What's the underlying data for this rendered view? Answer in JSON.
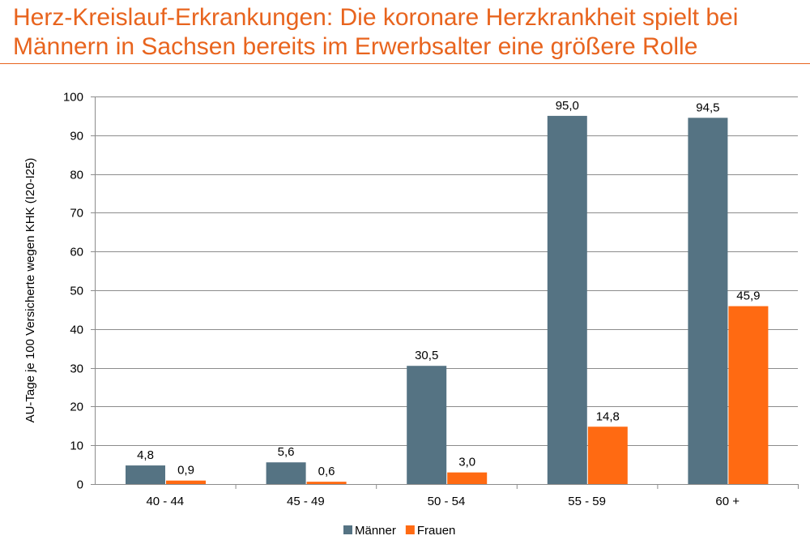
{
  "title": "Herz-Kreislauf-Erkrankungen: Die koronare Herzkrankheit spielt bei Männern in Sachsen bereits im Erwerbsalter eine größere Rolle",
  "chart_data": {
    "type": "bar",
    "title": "",
    "xlabel": "",
    "ylabel": "AU-Tage je 100 Versicherte wegen KHK (I20-I25)",
    "ylim": [
      0,
      100
    ],
    "yticks": [
      0,
      10,
      20,
      30,
      40,
      50,
      60,
      70,
      80,
      90,
      100
    ],
    "grid": true,
    "legend": "bottom",
    "categories": [
      "40 - 44",
      "45 - 49",
      "50 - 54",
      "55 - 59",
      "60 +"
    ],
    "series": [
      {
        "name": "Männer",
        "color": "#557383",
        "values": [
          4.8,
          5.6,
          30.5,
          95.0,
          94.5
        ],
        "labels": [
          "4,8",
          "5,6",
          "30,5",
          "95,0",
          "94,5"
        ]
      },
      {
        "name": "Frauen",
        "color": "#ff6a12",
        "values": [
          0.9,
          0.6,
          3.0,
          14.8,
          45.9
        ],
        "labels": [
          "0,9",
          "0,6",
          "3,0",
          "14,8",
          "45,9"
        ]
      }
    ]
  }
}
